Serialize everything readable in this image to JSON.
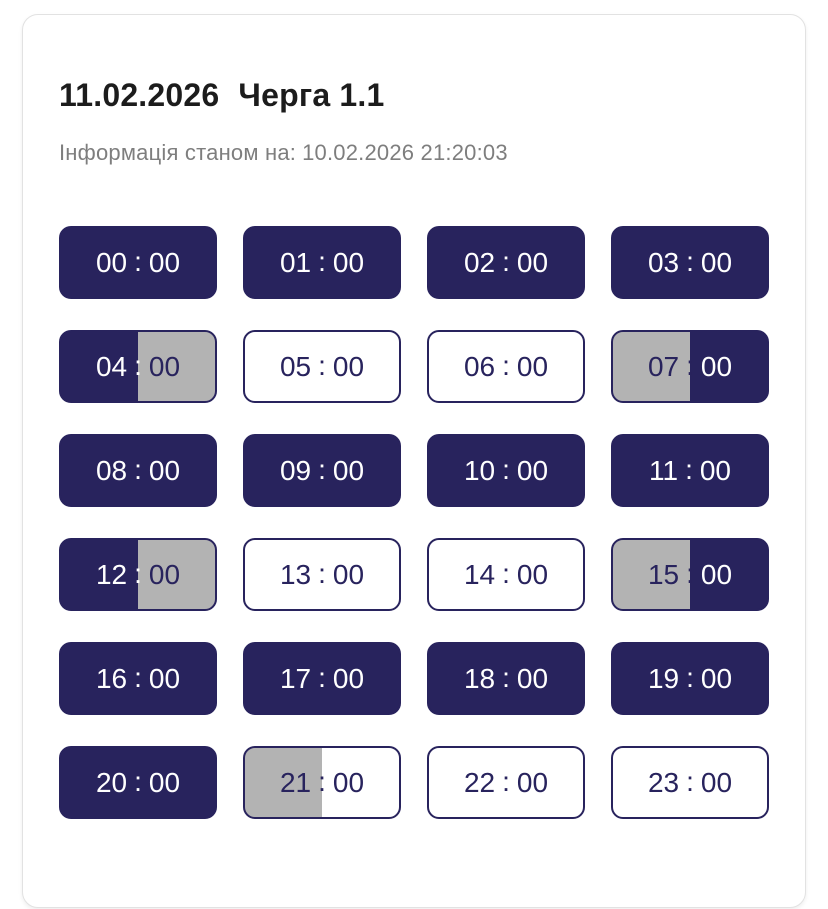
{
  "header": {
    "date": "11.02.2026",
    "queue": "Черга 1.1",
    "updated_label": "Інформація станом на:",
    "updated_value": "10.02.2026 21:20:03"
  },
  "colors": {
    "navy": "#28235d",
    "gray": "#b3b3b3",
    "white": "#ffffff",
    "card_border": "#e2e2e2",
    "title_text": "#1c1c1c",
    "subtitle_text": "#7e7e7e"
  },
  "slots": [
    {
      "time": "00:00",
      "hour": "00",
      "minute": "00",
      "state": "dark"
    },
    {
      "time": "01:00",
      "hour": "01",
      "minute": "00",
      "state": "dark"
    },
    {
      "time": "02:00",
      "hour": "02",
      "minute": "00",
      "state": "dark"
    },
    {
      "time": "03:00",
      "hour": "03",
      "minute": "00",
      "state": "dark"
    },
    {
      "time": "04:00",
      "hour": "04",
      "minute": "00",
      "state": "dark-gray"
    },
    {
      "time": "05:00",
      "hour": "05",
      "minute": "00",
      "state": "light"
    },
    {
      "time": "06:00",
      "hour": "06",
      "minute": "00",
      "state": "light"
    },
    {
      "time": "07:00",
      "hour": "07",
      "minute": "00",
      "state": "gray-dark"
    },
    {
      "time": "08:00",
      "hour": "08",
      "minute": "00",
      "state": "dark"
    },
    {
      "time": "09:00",
      "hour": "09",
      "minute": "00",
      "state": "dark"
    },
    {
      "time": "10:00",
      "hour": "10",
      "minute": "00",
      "state": "dark"
    },
    {
      "time": "11:00",
      "hour": "11",
      "minute": "00",
      "state": "dark"
    },
    {
      "time": "12:00",
      "hour": "12",
      "minute": "00",
      "state": "dark-gray"
    },
    {
      "time": "13:00",
      "hour": "13",
      "minute": "00",
      "state": "light"
    },
    {
      "time": "14:00",
      "hour": "14",
      "minute": "00",
      "state": "light"
    },
    {
      "time": "15:00",
      "hour": "15",
      "minute": "00",
      "state": "gray-dark"
    },
    {
      "time": "16:00",
      "hour": "16",
      "minute": "00",
      "state": "dark"
    },
    {
      "time": "17:00",
      "hour": "17",
      "minute": "00",
      "state": "dark"
    },
    {
      "time": "18:00",
      "hour": "18",
      "minute": "00",
      "state": "dark"
    },
    {
      "time": "19:00",
      "hour": "19",
      "minute": "00",
      "state": "dark"
    },
    {
      "time": "20:00",
      "hour": "20",
      "minute": "00",
      "state": "dark"
    },
    {
      "time": "21:00",
      "hour": "21",
      "minute": "00",
      "state": "gray-light"
    },
    {
      "time": "22:00",
      "hour": "22",
      "minute": "00",
      "state": "light"
    },
    {
      "time": "23:00",
      "hour": "23",
      "minute": "00",
      "state": "light"
    }
  ]
}
